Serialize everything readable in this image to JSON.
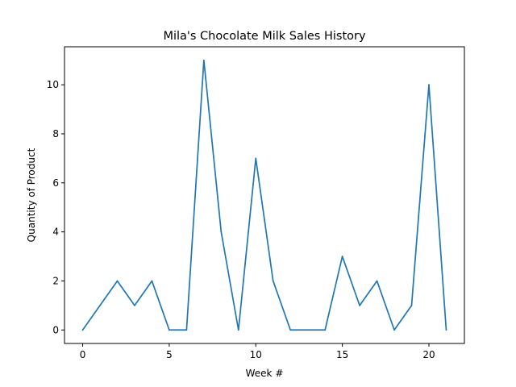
{
  "chart_data": {
    "type": "line",
    "title": "Mila's Chocolate Milk Sales History",
    "xlabel": "Week #",
    "ylabel": "Quantity of Product",
    "xlim": [
      -1.05,
      22.05
    ],
    "ylim": [
      -0.55,
      11.55
    ],
    "xticks": [
      0,
      5,
      10,
      15,
      20
    ],
    "yticks": [
      0,
      2,
      4,
      6,
      8,
      10
    ],
    "grid": false,
    "x": [
      0,
      1,
      2,
      3,
      4,
      5,
      6,
      7,
      8,
      9,
      10,
      11,
      12,
      13,
      14,
      15,
      16,
      17,
      18,
      19,
      20,
      21
    ],
    "series": [
      {
        "color": "#1f77b4",
        "values": [
          0,
          1,
          2,
          1,
          2,
          0,
          0,
          11,
          4,
          0,
          7,
          2,
          0,
          0,
          0,
          3,
          1,
          2,
          0,
          1,
          10,
          0
        ]
      }
    ]
  }
}
